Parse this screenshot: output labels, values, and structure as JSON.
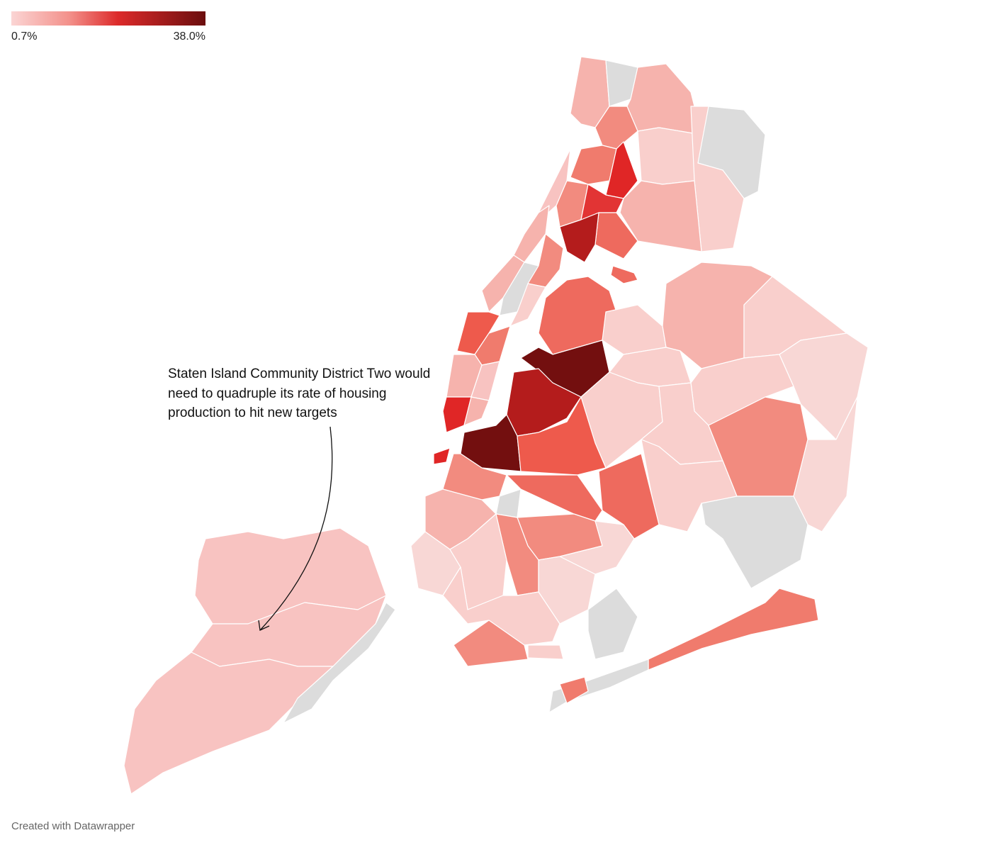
{
  "legend": {
    "min_label": "0.7%",
    "max_label": "38.0%"
  },
  "annotation": [
    "Staten Island Community District Two would",
    "need to quadruple its rate of housing",
    "production to hit new targets"
  ],
  "footer": "Created with Datawrapper"
}
